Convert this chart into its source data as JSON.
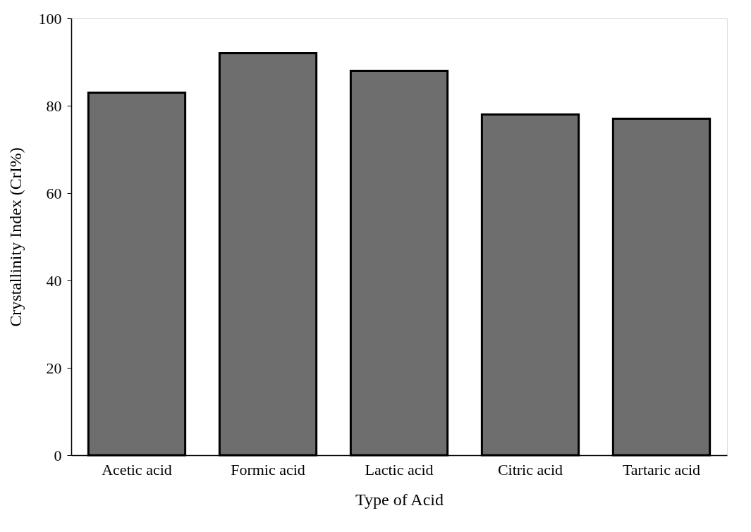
{
  "chart_data": {
    "type": "bar",
    "xlabel": "Type of Acid",
    "ylabel": "Crystallinity Index (CrI%)",
    "categories": [
      "Acetic acid",
      "Formic acid",
      "Lactic acid",
      "Citric acid",
      "Tartaric acid"
    ],
    "values": [
      83,
      92,
      88,
      78,
      77
    ],
    "color": "#6e6e6e",
    "ylim": [
      0,
      100
    ],
    "yticks": [
      0,
      20,
      40,
      60,
      80,
      100
    ],
    "grid": false
  }
}
